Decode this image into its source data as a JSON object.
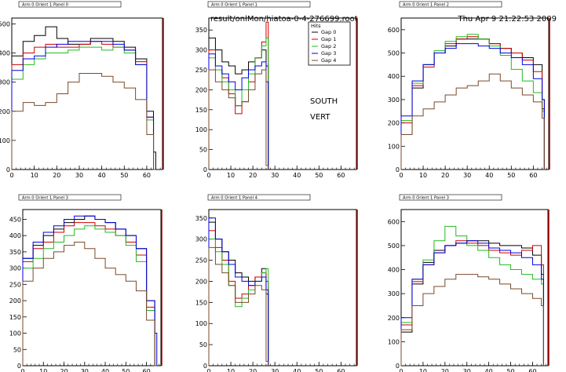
{
  "header": {
    "file_path": "result/onlMon/hiatoa-0-4-276699.root",
    "timestamp": "Thu Apr  9 21:22:53 2009"
  },
  "colors": {
    "gap0": "#000000",
    "gap1": "#cc0000",
    "gap2": "#22bb22",
    "gap3": "#0000dd",
    "gap4": "#7a4a2a",
    "frame": "#000000",
    "right_edge": "#aa0000"
  },
  "legend": {
    "title": "Hits",
    "entries": [
      "Gap 0",
      "Gap 1",
      "Gap 2",
      "Gap 3",
      "Gap 4"
    ]
  },
  "annotations": [
    "SOUTH",
    "VERT"
  ],
  "chart_data": [
    {
      "type": "line",
      "title": "Arm 0 Orient 1 Panel 0",
      "xlim": [
        0,
        67
      ],
      "ylim": [
        0,
        520
      ],
      "xticks": [
        0,
        10,
        20,
        30,
        40,
        50,
        60
      ],
      "yticks": [
        0,
        100,
        200,
        300,
        400,
        500
      ],
      "series": [
        {
          "name": "Gap 0",
          "x": [
            0,
            5,
            10,
            15,
            20,
            25,
            30,
            35,
            40,
            45,
            50,
            55,
            60,
            63
          ],
          "values": [
            390,
            440,
            460,
            490,
            450,
            430,
            430,
            450,
            450,
            440,
            420,
            380,
            200,
            60
          ]
        },
        {
          "name": "Gap 1",
          "x": [
            0,
            5,
            10,
            15,
            20,
            25,
            30,
            35,
            40,
            45,
            50,
            55,
            60,
            63
          ],
          "values": [
            360,
            400,
            420,
            430,
            420,
            420,
            430,
            440,
            430,
            420,
            410,
            370,
            180,
            0
          ]
        },
        {
          "name": "Gap 2",
          "x": [
            0,
            5,
            10,
            15,
            20,
            25,
            30,
            35,
            40,
            45,
            50,
            55,
            60,
            63
          ],
          "values": [
            310,
            360,
            380,
            400,
            400,
            410,
            420,
            420,
            410,
            420,
            400,
            360,
            170,
            0
          ]
        },
        {
          "name": "Gap 3",
          "x": [
            0,
            5,
            10,
            15,
            20,
            25,
            30,
            35,
            40,
            45,
            50,
            55,
            60,
            63
          ],
          "values": [
            340,
            380,
            390,
            420,
            430,
            440,
            440,
            440,
            440,
            430,
            410,
            360,
            180,
            0
          ]
        },
        {
          "name": "Gap 4",
          "x": [
            0,
            5,
            10,
            15,
            20,
            25,
            30,
            35,
            40,
            45,
            50,
            55,
            60,
            63
          ],
          "values": [
            200,
            230,
            220,
            230,
            260,
            300,
            330,
            330,
            320,
            300,
            280,
            240,
            120,
            0
          ]
        }
      ]
    },
    {
      "type": "line",
      "title": "Arm 0 Orient 1 Panel 1",
      "xlim": [
        0,
        67
      ],
      "ylim": [
        0,
        380
      ],
      "xticks": [
        0,
        10,
        20,
        30,
        40,
        50,
        60
      ],
      "yticks": [
        0,
        50,
        100,
        150,
        200,
        250,
        300,
        350
      ],
      "series": [
        {
          "name": "Gap 0",
          "x": [
            0,
            3,
            6,
            9,
            12,
            15,
            18,
            21,
            24,
            26
          ],
          "values": [
            330,
            300,
            270,
            260,
            240,
            250,
            270,
            280,
            300,
            260
          ]
        },
        {
          "name": "Gap 1",
          "x": [
            0,
            3,
            6,
            9,
            12,
            15,
            18,
            21,
            24,
            26
          ],
          "values": [
            300,
            250,
            230,
            190,
            140,
            170,
            220,
            280,
            320,
            370
          ]
        },
        {
          "name": "Gap 2",
          "x": [
            0,
            3,
            6,
            9,
            12,
            15,
            18,
            21,
            24,
            26
          ],
          "values": [
            280,
            250,
            220,
            200,
            160,
            200,
            240,
            280,
            310,
            330
          ]
        },
        {
          "name": "Gap 3",
          "x": [
            0,
            3,
            6,
            9,
            12,
            15,
            18,
            21,
            24,
            26
          ],
          "values": [
            290,
            260,
            240,
            220,
            200,
            230,
            250,
            260,
            270,
            220
          ]
        },
        {
          "name": "Gap 4",
          "x": [
            0,
            3,
            6,
            9,
            12,
            15,
            18,
            21,
            24,
            26
          ],
          "values": [
            250,
            220,
            200,
            180,
            160,
            170,
            200,
            240,
            250,
            10
          ]
        }
      ]
    },
    {
      "type": "line",
      "title": "Arm 0 Orient 1 Panel 2",
      "xlim": [
        0,
        67
      ],
      "ylim": [
        0,
        650
      ],
      "xticks": [
        0,
        10,
        20,
        30,
        40,
        50,
        60
      ],
      "yticks": [
        0,
        100,
        200,
        300,
        400,
        500,
        600
      ],
      "series": [
        {
          "name": "Gap 0",
          "x": [
            0,
            5,
            10,
            15,
            20,
            25,
            30,
            35,
            40,
            45,
            50,
            55,
            60,
            64
          ],
          "values": [
            150,
            350,
            450,
            500,
            530,
            560,
            560,
            560,
            540,
            520,
            500,
            480,
            450,
            260
          ]
        },
        {
          "name": "Gap 1",
          "x": [
            0,
            5,
            10,
            15,
            20,
            25,
            30,
            35,
            40,
            45,
            50,
            55,
            60,
            64
          ],
          "values": [
            200,
            360,
            440,
            500,
            540,
            560,
            570,
            560,
            540,
            520,
            500,
            470,
            420,
            300
          ]
        },
        {
          "name": "Gap 2",
          "x": [
            0,
            5,
            10,
            15,
            20,
            25,
            30,
            35,
            40,
            45,
            50,
            55,
            60,
            64
          ],
          "values": [
            210,
            370,
            450,
            510,
            550,
            570,
            580,
            560,
            530,
            490,
            430,
            380,
            330,
            250
          ]
        },
        {
          "name": "Gap 3",
          "x": [
            0,
            5,
            10,
            15,
            20,
            25,
            30,
            35,
            40,
            45,
            50,
            55,
            60,
            64
          ],
          "values": [
            230,
            380,
            450,
            500,
            520,
            540,
            540,
            530,
            520,
            500,
            480,
            450,
            390,
            300
          ]
        },
        {
          "name": "Gap 4",
          "x": [
            0,
            5,
            10,
            15,
            20,
            25,
            30,
            35,
            40,
            45,
            50,
            55,
            60,
            64
          ],
          "values": [
            150,
            230,
            260,
            290,
            320,
            350,
            360,
            380,
            410,
            380,
            350,
            320,
            290,
            220
          ]
        }
      ]
    },
    {
      "type": "line",
      "title": "Arm 0 Orient 1 Panel 3",
      "xlim": [
        0,
        67
      ],
      "ylim": [
        0,
        480
      ],
      "xticks": [
        0,
        10,
        20,
        30,
        40,
        50,
        60
      ],
      "yticks": [
        0,
        50,
        100,
        150,
        200,
        250,
        300,
        350,
        400,
        450
      ],
      "series": [
        {
          "name": "Gap 0",
          "x": [
            0,
            5,
            10,
            15,
            20,
            25,
            30,
            35,
            40,
            45,
            50,
            55,
            60,
            64
          ],
          "values": [
            330,
            370,
            400,
            420,
            440,
            450,
            460,
            450,
            440,
            420,
            400,
            360,
            200,
            0
          ]
        },
        {
          "name": "Gap 1",
          "x": [
            0,
            5,
            10,
            15,
            20,
            25,
            30,
            35,
            40,
            45,
            50,
            55,
            60,
            64
          ],
          "values": [
            320,
            360,
            380,
            410,
            430,
            440,
            440,
            430,
            420,
            400,
            380,
            340,
            180,
            0
          ]
        },
        {
          "name": "Gap 2",
          "x": [
            0,
            5,
            10,
            15,
            20,
            25,
            30,
            35,
            40,
            45,
            50,
            55,
            60,
            64
          ],
          "values": [
            300,
            330,
            360,
            380,
            400,
            420,
            430,
            420,
            410,
            400,
            370,
            320,
            170,
            0
          ]
        },
        {
          "name": "Gap 3",
          "x": [
            0,
            5,
            10,
            15,
            20,
            25,
            30,
            35,
            40,
            45,
            50,
            55,
            60,
            64
          ],
          "values": [
            330,
            380,
            410,
            430,
            450,
            460,
            460,
            450,
            440,
            420,
            400,
            360,
            200,
            100
          ]
        },
        {
          "name": "Gap 4",
          "x": [
            0,
            5,
            10,
            15,
            20,
            25,
            30,
            35,
            40,
            45,
            50,
            55,
            60,
            64
          ],
          "values": [
            260,
            300,
            330,
            350,
            370,
            380,
            360,
            330,
            300,
            280,
            260,
            230,
            140,
            0
          ]
        }
      ]
    },
    {
      "type": "line",
      "title": "Arm 0 Orient 1 Panel 4",
      "xlim": [
        0,
        67
      ],
      "ylim": [
        0,
        370
      ],
      "xticks": [
        0,
        10,
        20,
        30,
        40,
        50,
        60
      ],
      "yticks": [
        0,
        50,
        100,
        150,
        200,
        250,
        300,
        350
      ],
      "series": [
        {
          "name": "Gap 0",
          "x": [
            0,
            3,
            6,
            9,
            12,
            15,
            18,
            21,
            24,
            26
          ],
          "values": [
            340,
            300,
            270,
            250,
            220,
            210,
            200,
            210,
            230,
            170
          ]
        },
        {
          "name": "Gap 1",
          "x": [
            0,
            3,
            6,
            9,
            12,
            15,
            18,
            21,
            24,
            26
          ],
          "values": [
            320,
            280,
            250,
            200,
            160,
            170,
            190,
            210,
            220,
            200
          ]
        },
        {
          "name": "Gap 2",
          "x": [
            0,
            3,
            6,
            9,
            12,
            15,
            18,
            21,
            24,
            26
          ],
          "values": [
            300,
            270,
            240,
            190,
            140,
            160,
            180,
            200,
            220,
            230
          ]
        },
        {
          "name": "Gap 3",
          "x": [
            0,
            3,
            6,
            9,
            12,
            15,
            18,
            21,
            24,
            26
          ],
          "values": [
            350,
            300,
            270,
            240,
            210,
            200,
            190,
            200,
            210,
            180
          ]
        },
        {
          "name": "Gap 4",
          "x": [
            0,
            3,
            6,
            9,
            12,
            15,
            18,
            21,
            24,
            26
          ],
          "values": [
            280,
            240,
            220,
            190,
            150,
            150,
            170,
            190,
            180,
            10
          ]
        }
      ]
    },
    {
      "type": "line",
      "title": "Arm 0 Orient 1 Panel 3",
      "xlim": [
        0,
        67
      ],
      "ylim": [
        0,
        650
      ],
      "xticks": [
        0,
        10,
        20,
        30,
        40,
        50,
        60
      ],
      "yticks": [
        0,
        100,
        200,
        300,
        400,
        500,
        600
      ],
      "series": [
        {
          "name": "Gap 0",
          "x": [
            0,
            5,
            10,
            15,
            20,
            25,
            30,
            35,
            40,
            45,
            50,
            55,
            60,
            64
          ],
          "values": [
            140,
            340,
            430,
            480,
            500,
            510,
            520,
            520,
            510,
            500,
            500,
            490,
            460,
            380
          ]
        },
        {
          "name": "Gap 1",
          "x": [
            0,
            5,
            10,
            15,
            20,
            25,
            30,
            35,
            40,
            45,
            50,
            55,
            60,
            64
          ],
          "values": [
            170,
            350,
            420,
            470,
            500,
            520,
            510,
            500,
            480,
            470,
            460,
            480,
            500,
            420
          ]
        },
        {
          "name": "Gap 2",
          "x": [
            0,
            5,
            10,
            15,
            20,
            25,
            30,
            35,
            40,
            45,
            50,
            55,
            60,
            64
          ],
          "values": [
            180,
            360,
            440,
            520,
            580,
            540,
            500,
            480,
            450,
            420,
            400,
            380,
            360,
            340
          ]
        },
        {
          "name": "Gap 3",
          "x": [
            0,
            5,
            10,
            15,
            20,
            25,
            30,
            35,
            40,
            45,
            50,
            55,
            60,
            64
          ],
          "values": [
            200,
            360,
            420,
            470,
            500,
            510,
            520,
            510,
            490,
            480,
            470,
            450,
            420,
            360
          ]
        },
        {
          "name": "Gap 4",
          "x": [
            0,
            5,
            10,
            15,
            20,
            25,
            30,
            35,
            40,
            45,
            50,
            55,
            60,
            64
          ],
          "values": [
            150,
            250,
            300,
            330,
            360,
            380,
            380,
            370,
            360,
            340,
            320,
            300,
            280,
            250
          ]
        }
      ]
    }
  ]
}
